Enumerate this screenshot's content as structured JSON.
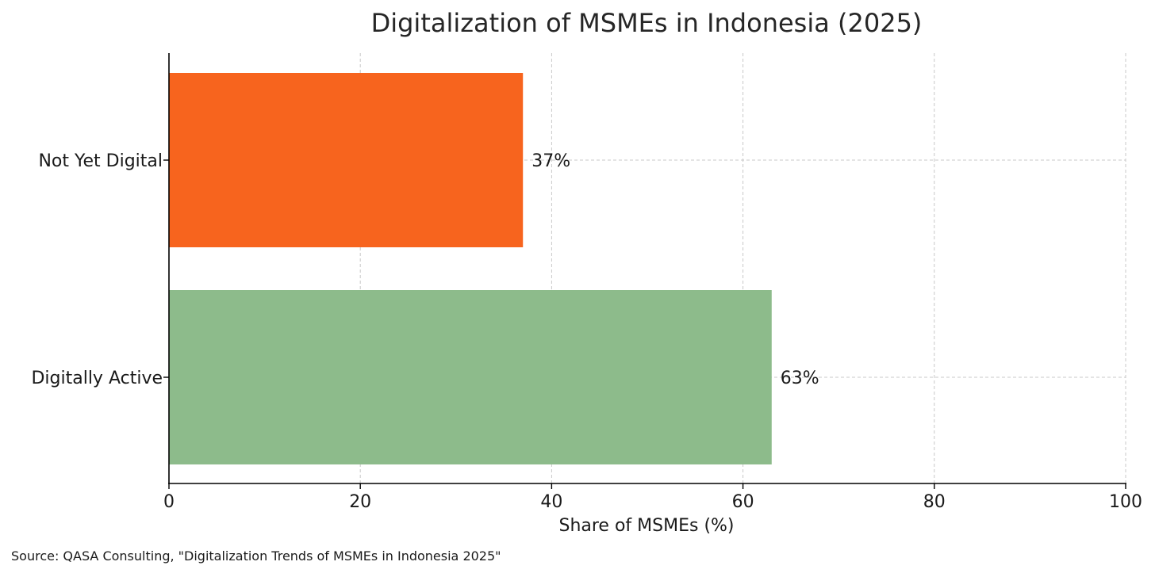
{
  "chart_data": {
    "type": "bar",
    "orientation": "horizontal",
    "title": "Digitalization of MSMEs in Indonesia (2025)",
    "xlabel": "Share of MSMEs (%)",
    "ylabel": "",
    "categories": [
      "Not Yet Digital",
      "Digitally Active"
    ],
    "values": [
      37,
      63
    ],
    "data_labels": [
      "37%",
      "63%"
    ],
    "colors": [
      "#f7641e",
      "#8dbb8b"
    ],
    "xlim": [
      0,
      100
    ],
    "xticks": [
      0,
      20,
      40,
      60,
      80,
      100
    ],
    "grid": true
  },
  "source_note": "Source: QASA Consulting, \"Digitalization Trends of MSMEs in Indonesia 2025\""
}
